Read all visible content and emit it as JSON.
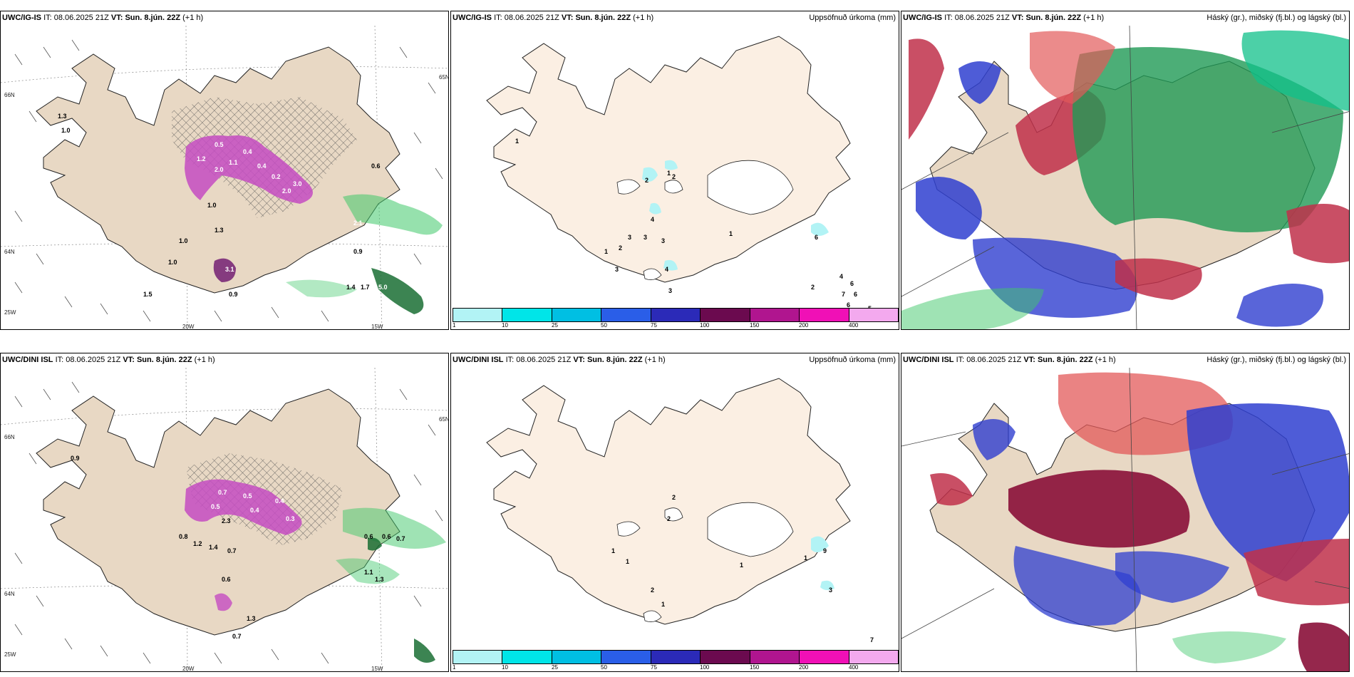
{
  "rows": [
    {
      "model": "UWC/IG-IS",
      "it_label": "IT:",
      "it": "08.06.2025 21Z",
      "vt_label": "VT:",
      "vt": "Sun. 8.jún. 22Z",
      "lead": "(+1 h)",
      "left_values": [
        "0.5",
        "0.4",
        "1.2",
        "2.0",
        "1.1",
        "0.4",
        "0.2",
        "3.0",
        "2.0",
        "0.6",
        "1.0",
        "1.0",
        "1.0",
        "1.5",
        "0.9",
        "1.3",
        "0.9",
        "2.1",
        "3.1",
        "1.4",
        "1.7",
        "5.0",
        "1.0",
        "1.3"
      ],
      "precip_values": [
        "1",
        "2",
        "1",
        "2",
        "4",
        "3",
        "3",
        "1",
        "2",
        "3",
        "3",
        "4",
        "3",
        "1",
        "6",
        "4",
        "6",
        "7",
        "6",
        "6",
        "5",
        "2"
      ]
    },
    {
      "model": "UWC/DINI ISL",
      "it_label": "IT:",
      "it": "08.06.2025 21Z",
      "vt_label": "VT:",
      "vt": "Sun. 8.jún. 22Z",
      "lead": "(+1 h)",
      "left_values": [
        "0.7",
        "0.5",
        "0.4",
        "0.5",
        "0.4",
        "0.3",
        "2.3",
        "0.8",
        "1.2",
        "1.4",
        "0.7",
        "0.6",
        "0.6",
        "0.7",
        "1.3",
        "0.9",
        "0.7",
        "0.6",
        "1.1",
        "1.3"
      ],
      "precip_values": [
        "2",
        "2",
        "1",
        "1",
        "1",
        "1",
        "2",
        "1",
        "9",
        "3",
        "7"
      ]
    }
  ],
  "middle_title": "Uppsöfnuð úrkoma (mm)",
  "right_title": "Háský (gr.), miðský (fj.bl.) og lágský (bl.)",
  "axis_labels": {
    "lat_66": "66N",
    "lat_64": "64N",
    "lat_65": "65N",
    "lon_20": "20W",
    "lon_15": "15W",
    "lon_25": "25W"
  },
  "colorbar": {
    "colors": [
      "#b2f3f5",
      "#00e5e8",
      "#00bfe3",
      "#2a5ee8",
      "#2b2ab8",
      "#6b0a4f",
      "#b0158f",
      "#f010b6",
      "#f3a9ee"
    ],
    "ticks": [
      "1",
      "10",
      "25",
      "50",
      "75",
      "100",
      "150",
      "200",
      "400"
    ]
  },
  "colors": {
    "land": "#e8d8c4",
    "land_light": "#fbefe3",
    "purple": "#c44cc2",
    "green": "#3fc86a",
    "cloud_high": "#1f9a55",
    "cloud_mid": "#c0304a",
    "cloud_low": "#2f3fd0"
  }
}
